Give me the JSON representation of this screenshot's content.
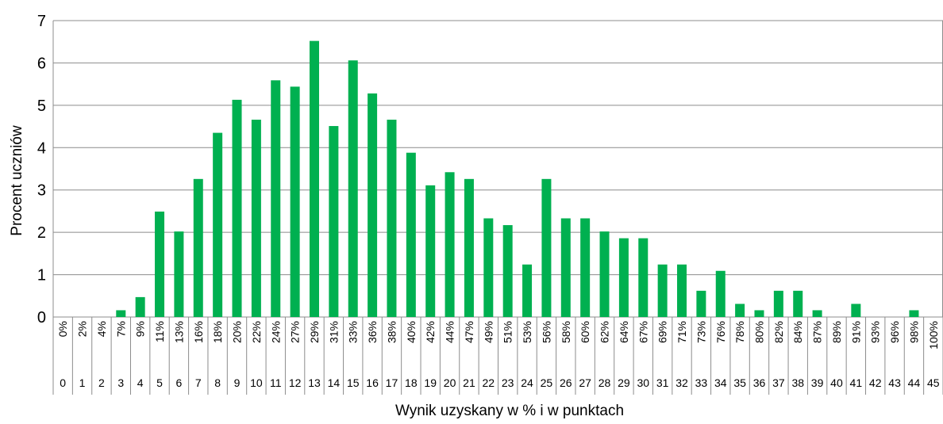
{
  "chart_data": {
    "type": "bar",
    "ylabel": "Procent uczniów",
    "xlabel": "Wynik uzyskany w % i w punktach",
    "ylim": [
      0,
      7
    ],
    "yticks": [
      "0",
      "1",
      "2",
      "3",
      "4",
      "5",
      "6",
      "7"
    ],
    "grid": true,
    "legend": "none",
    "bar_color": "#00b050",
    "categories_percent": [
      "0%",
      "2%",
      "4%",
      "7%",
      "9%",
      "11%",
      "13%",
      "16%",
      "18%",
      "20%",
      "22%",
      "24%",
      "27%",
      "29%",
      "31%",
      "33%",
      "36%",
      "38%",
      "40%",
      "42%",
      "44%",
      "47%",
      "49%",
      "51%",
      "53%",
      "56%",
      "58%",
      "60%",
      "62%",
      "64%",
      "67%",
      "69%",
      "71%",
      "73%",
      "76%",
      "78%",
      "80%",
      "82%",
      "84%",
      "87%",
      "89%",
      "91%",
      "93%",
      "96%",
      "98%",
      "100%"
    ],
    "categories_points": [
      "0",
      "1",
      "2",
      "3",
      "4",
      "5",
      "6",
      "7",
      "8",
      "9",
      "10",
      "11",
      "12",
      "13",
      "14",
      "15",
      "16",
      "17",
      "18",
      "19",
      "20",
      "21",
      "22",
      "23",
      "24",
      "25",
      "26",
      "27",
      "28",
      "29",
      "30",
      "31",
      "32",
      "33",
      "34",
      "35",
      "36",
      "37",
      "38",
      "39",
      "40",
      "41",
      "42",
      "43",
      "44",
      "45"
    ],
    "values": [
      0,
      0,
      0,
      0.16,
      0.47,
      2.49,
      2.02,
      3.26,
      4.35,
      5.13,
      4.66,
      5.59,
      5.44,
      6.52,
      4.51,
      6.06,
      5.28,
      4.66,
      3.88,
      3.11,
      3.42,
      3.26,
      2.33,
      2.17,
      1.24,
      3.26,
      2.33,
      2.33,
      2.02,
      1.86,
      1.86,
      1.24,
      1.24,
      0.62,
      1.09,
      0.31,
      0.16,
      0.62,
      0.62,
      0.16,
      0,
      0.31,
      0,
      0,
      0.16,
      0
    ]
  }
}
